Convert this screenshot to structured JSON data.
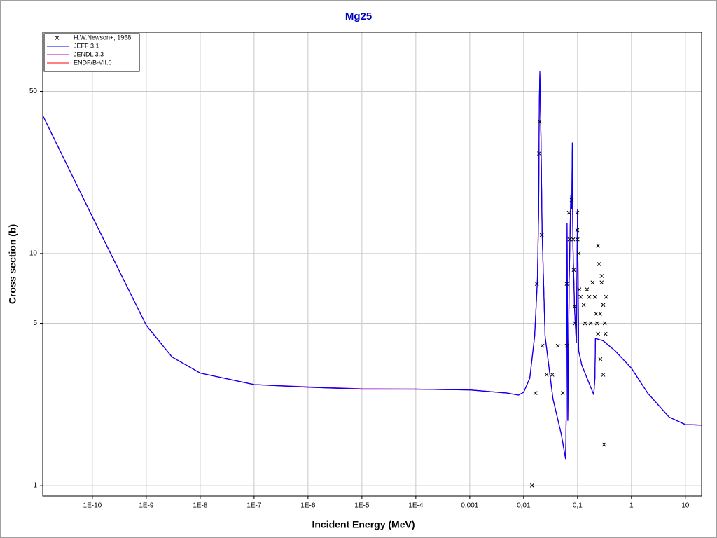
{
  "chart_data": {
    "type": "line",
    "title": "Mg25",
    "x_label": "Incident Energy (MeV)",
    "y_label": "Cross section (b)",
    "x_log": true,
    "y_log": true,
    "grid": true,
    "legend": "top-left",
    "xlim": [
      1.2e-11,
      20
    ],
    "ylim": [
      0.9,
      90
    ],
    "xticks": [
      {
        "value": 1e-10,
        "label": "1E-10"
      },
      {
        "value": 1e-09,
        "label": "1E-9"
      },
      {
        "value": 1e-08,
        "label": "1E-8"
      },
      {
        "value": 1e-07,
        "label": "1E-7"
      },
      {
        "value": 1e-06,
        "label": "1E-6"
      },
      {
        "value": 1e-05,
        "label": "1E-5"
      },
      {
        "value": 0.0001,
        "label": "1E-4"
      },
      {
        "value": 0.001,
        "label": "0,001"
      },
      {
        "value": 0.01,
        "label": "0,01"
      },
      {
        "value": 0.1,
        "label": "0,1"
      },
      1,
      10
    ],
    "yticks": [
      1,
      5,
      10,
      50
    ],
    "scatter": {
      "name": "H.W.Newson+, 1958",
      "color": "#000000",
      "x": [
        0.0143,
        0.0166,
        0.0176,
        0.0198,
        0.0193,
        0.0217,
        0.0223,
        0.0267,
        0.034,
        0.043,
        0.053,
        0.063,
        0.063,
        0.069,
        0.071,
        0.078,
        0.083,
        0.085,
        0.088,
        0.09,
        0.099,
        0.099,
        0.1,
        0.105,
        0.108,
        0.114,
        0.13,
        0.138,
        0.15,
        0.165,
        0.175,
        0.19,
        0.21,
        0.22,
        0.23,
        0.24,
        0.25,
        0.24,
        0.265,
        0.265,
        0.28,
        0.28,
        0.3,
        0.3,
        0.31,
        0.32,
        0.33,
        0.34
      ],
      "values": [
        1,
        2.5,
        7.4,
        37,
        27,
        12,
        4.0,
        3.0,
        3.0,
        4.0,
        2.5,
        4.0,
        7.4,
        15,
        11.5,
        17,
        11.5,
        8.5,
        5.9,
        5,
        15,
        12.6,
        11.5,
        10,
        7,
        6.5,
        6.0,
        5,
        7,
        6.5,
        5,
        7.5,
        6.5,
        5.5,
        5,
        10.8,
        9,
        4.5,
        5.5,
        3.5,
        8,
        7.5,
        6,
        3,
        1.5,
        5,
        4.5,
        6.5
      ]
    },
    "series": [
      {
        "name": "JEFF 3.1",
        "color": "#0000ff",
        "x": [
          1.2e-11,
          1e-10,
          1e-09,
          3e-09,
          1e-08,
          1e-07,
          1e-06,
          1e-05,
          0.0001,
          0.001,
          0.005,
          0.008,
          0.01,
          0.013,
          0.016,
          0.018,
          0.019,
          0.0195,
          0.02,
          0.021,
          0.022,
          0.025,
          0.035,
          0.05,
          0.06,
          0.062,
          0.064,
          0.066,
          0.07,
          0.075,
          0.078,
          0.08,
          0.082,
          0.088,
          0.095,
          0.1,
          0.105,
          0.12,
          0.15,
          0.2,
          0.21,
          0.215,
          0.3,
          0.5,
          1,
          2,
          5,
          10,
          20
        ],
        "values": [
          39.4,
          14.4,
          4.9,
          3.58,
          3.05,
          2.72,
          2.65,
          2.6,
          2.6,
          2.58,
          2.5,
          2.45,
          2.52,
          2.9,
          4.4,
          7.7,
          15.5,
          44,
          61,
          31,
          12.6,
          4.4,
          2.36,
          1.66,
          1.3,
          2.2,
          13.5,
          1.9,
          7.7,
          17.8,
          15.5,
          30.1,
          11.1,
          5.8,
          4.1,
          15.5,
          3.8,
          3.3,
          2.9,
          2.46,
          2.9,
          4.3,
          4.2,
          3.8,
          3.2,
          2.5,
          1.97,
          1.83,
          1.82
        ]
      },
      {
        "name": "JENDL 3.3",
        "color": "#c000c0",
        "x": [
          1.2e-11,
          1e-10,
          1e-09,
          3e-09,
          1e-08,
          1e-07,
          1e-06,
          1e-05,
          0.0001,
          0.001,
          0.005,
          0.008,
          0.01,
          0.013,
          0.016,
          0.018,
          0.019,
          0.0195,
          0.02,
          0.021,
          0.022,
          0.025,
          0.035,
          0.05,
          0.06,
          0.062,
          0.064,
          0.066,
          0.07,
          0.075,
          0.078,
          0.08,
          0.082,
          0.088,
          0.095,
          0.1,
          0.105,
          0.12,
          0.15,
          0.2,
          0.21,
          0.215,
          0.3,
          0.5,
          1,
          2,
          5,
          10,
          20
        ],
        "values": [
          39.4,
          14.4,
          4.9,
          3.58,
          3.05,
          2.72,
          2.66,
          2.61,
          2.6,
          2.58,
          2.5,
          2.45,
          2.52,
          2.9,
          4.4,
          7.7,
          15.5,
          44,
          58,
          31,
          12.6,
          4.4,
          2.36,
          1.66,
          1.3,
          2.2,
          13.5,
          1.9,
          7.7,
          17.8,
          15.5,
          20,
          11.1,
          5.8,
          4.1,
          15.5,
          3.8,
          3.3,
          2.9,
          2.46,
          2.9,
          4.3,
          4.2,
          3.8,
          3.2,
          2.5,
          1.97,
          1.83,
          1.82
        ]
      },
      {
        "name": "ENDF/B-VII.0",
        "color": "#ff0000",
        "x": [
          1.2e-11,
          1e-10,
          1e-09,
          3e-09,
          1e-08,
          1e-07,
          1e-06,
          1e-05,
          0.0001,
          0.001,
          0.005,
          0.008,
          0.01,
          0.013,
          0.016,
          0.018,
          0.019,
          0.0195,
          0.02,
          0.021,
          0.022,
          0.025,
          0.035,
          0.05,
          0.06,
          0.062,
          0.064,
          0.066,
          0.07,
          0.075,
          0.078,
          0.08,
          0.082,
          0.088,
          0.095,
          0.1,
          0.105,
          0.12,
          0.15,
          0.2,
          0.21,
          0.215,
          0.3,
          0.5,
          1,
          2,
          5,
          10,
          20
        ],
        "values": [
          39.4,
          14.4,
          4.9,
          3.58,
          3.05,
          2.72,
          2.65,
          2.6,
          2.6,
          2.58,
          2.5,
          2.45,
          2.52,
          2.9,
          4.4,
          7.7,
          15.5,
          44,
          60,
          31,
          12.6,
          4.4,
          2.36,
          1.66,
          1.3,
          2.2,
          13.5,
          1.9,
          7.7,
          17.8,
          15.5,
          28,
          11.1,
          5.8,
          4.1,
          15.5,
          3.8,
          3.3,
          2.9,
          2.46,
          2.9,
          4.3,
          4.2,
          3.8,
          3.2,
          2.5,
          1.97,
          1.83,
          1.82
        ]
      }
    ]
  }
}
